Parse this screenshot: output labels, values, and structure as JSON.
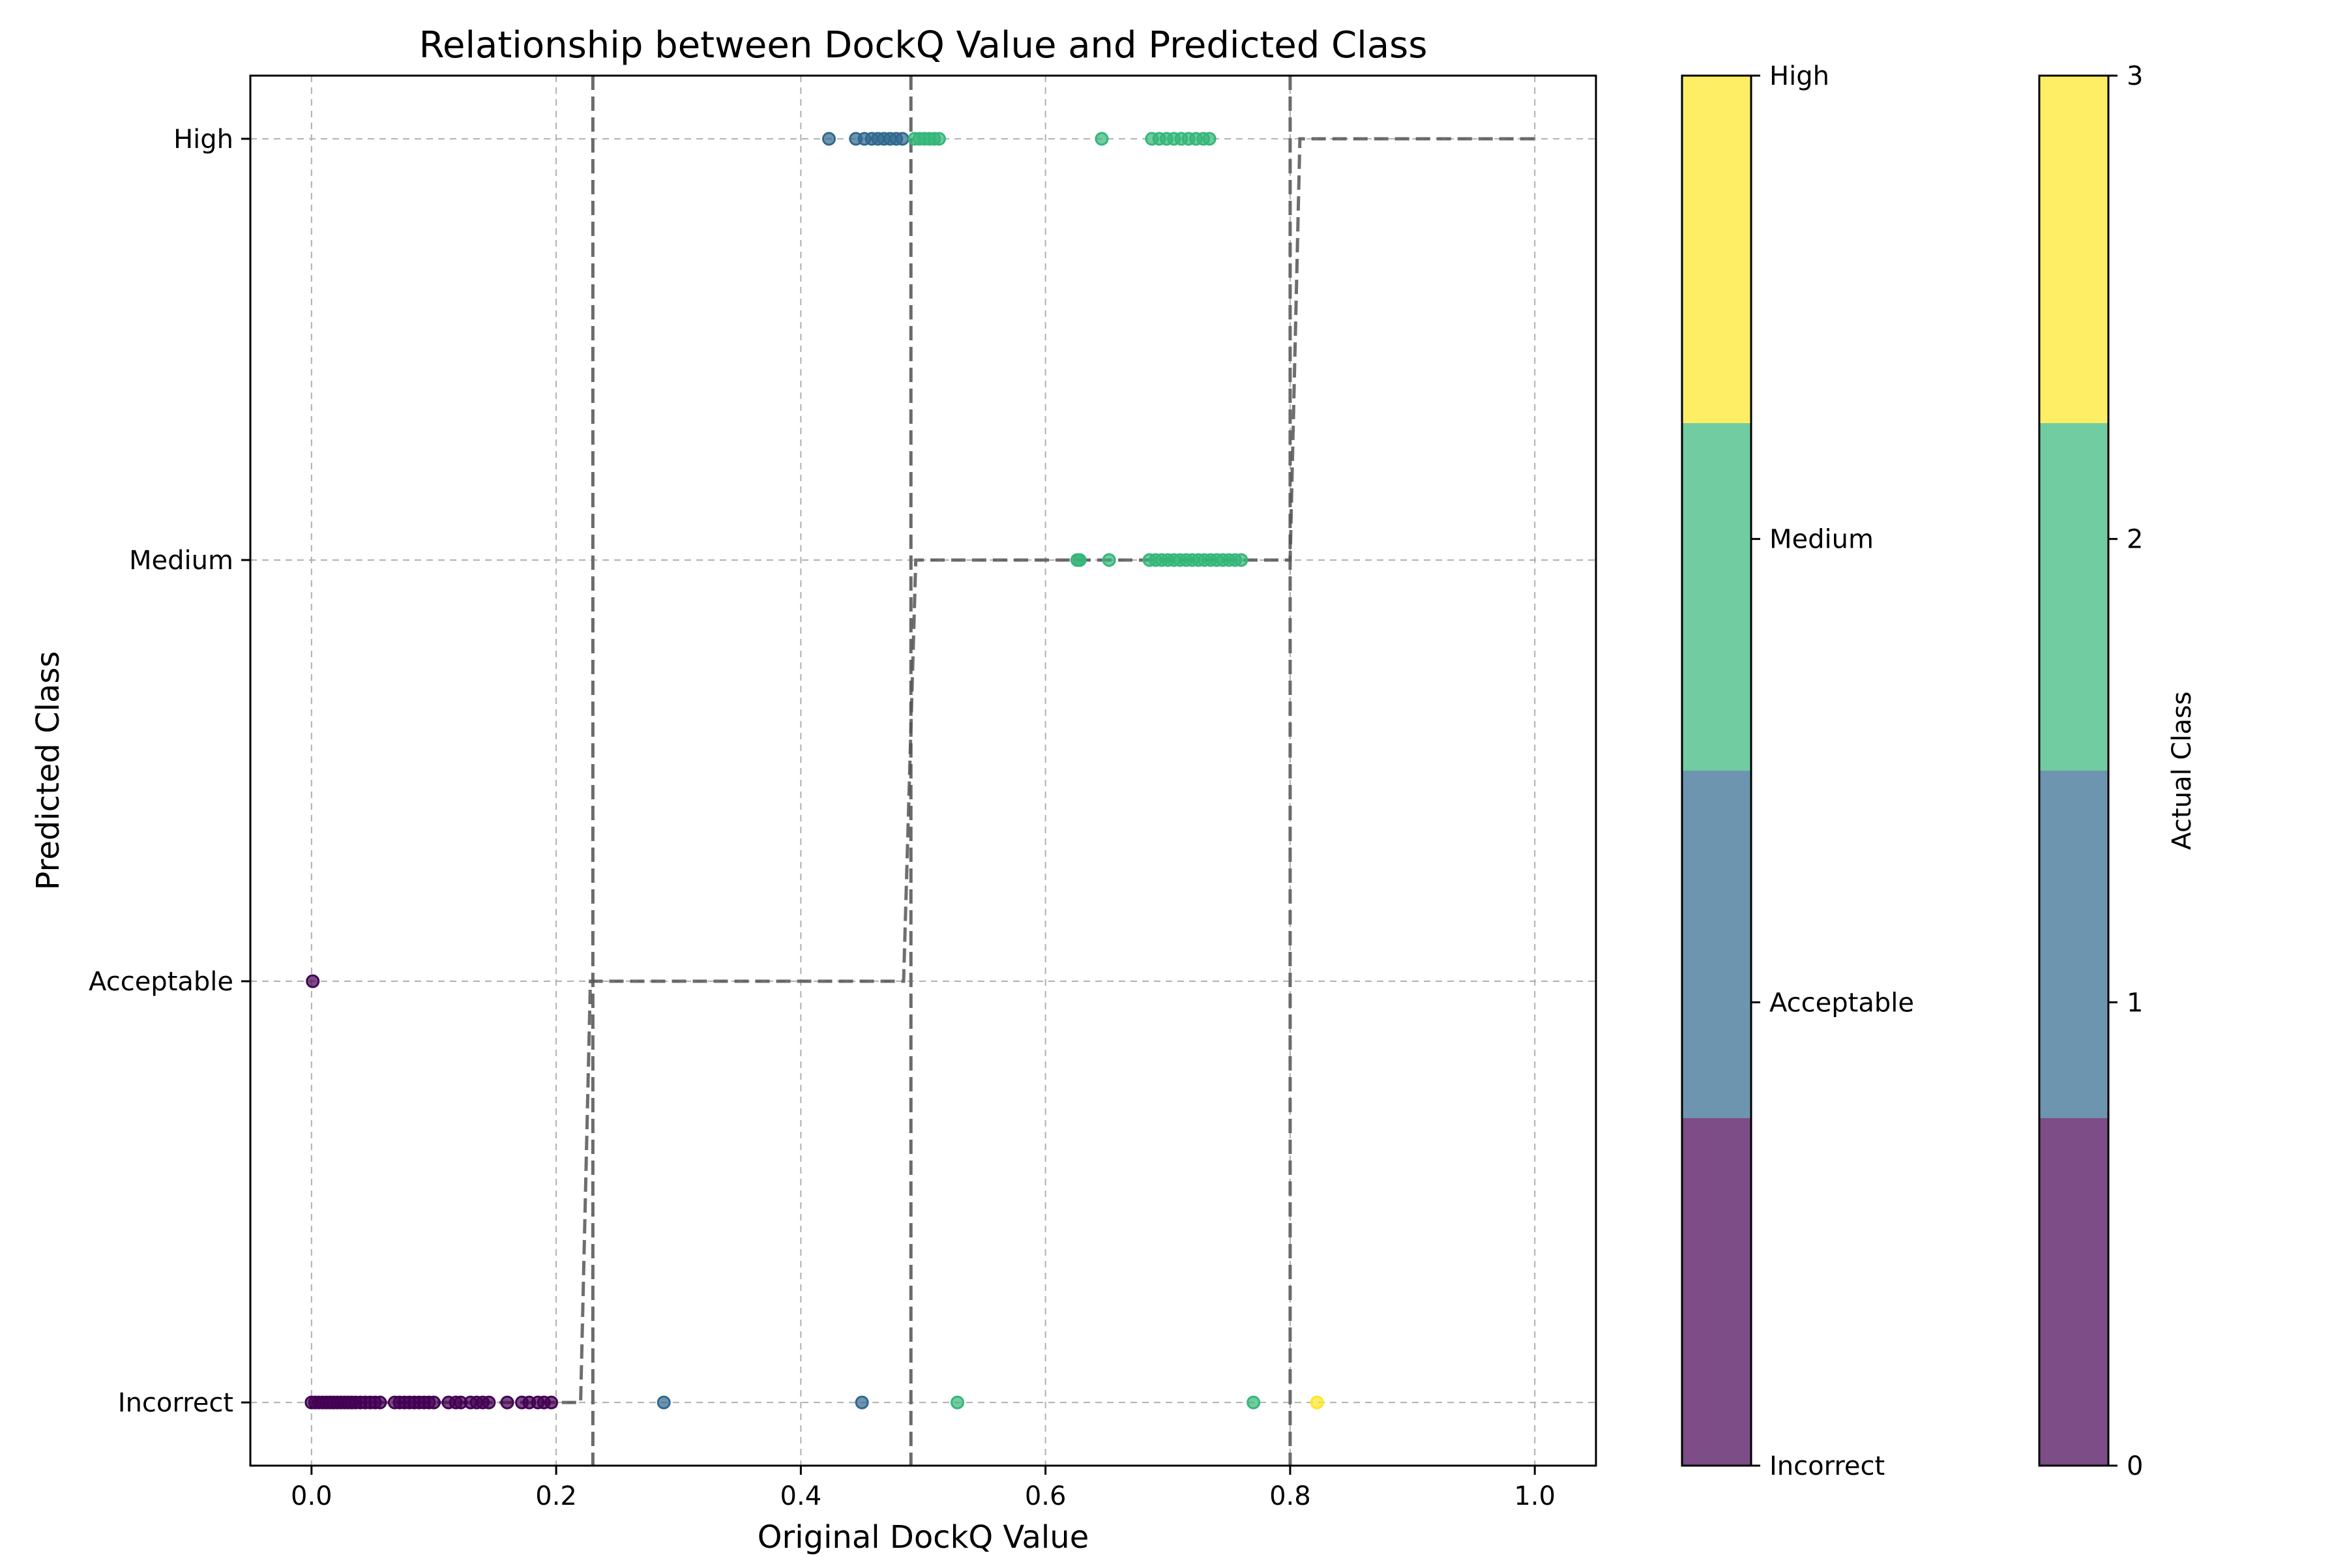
{
  "chart_data": {
    "type": "scatter",
    "title": "Relationship between DockQ Value and Predicted Class",
    "xlabel": "Original DockQ Value",
    "ylabel": "Predicted Class",
    "xlim": [
      -0.05,
      1.05
    ],
    "ylim": [
      -0.15,
      3.15
    ],
    "xticks": [
      {
        "value": 0.0,
        "label": "0.0"
      },
      {
        "value": 0.2,
        "label": "0.2"
      },
      {
        "value": 0.4,
        "label": "0.4"
      },
      {
        "value": 0.6,
        "label": "0.6"
      },
      {
        "value": 0.8,
        "label": "0.8"
      },
      {
        "value": 1.0,
        "label": "1.0"
      }
    ],
    "yticks": [
      {
        "value": 0,
        "label": "Incorrect"
      },
      {
        "value": 1,
        "label": "Acceptable"
      },
      {
        "value": 2,
        "label": "Medium"
      },
      {
        "value": 3,
        "label": "High"
      }
    ],
    "grid": true,
    "thresholds": [
      0.23,
      0.49,
      0.8
    ],
    "step_line": [
      [
        0.0,
        0
      ],
      [
        0.22,
        0
      ],
      [
        0.228,
        1
      ],
      [
        0.484,
        1
      ],
      [
        0.494,
        2
      ],
      [
        0.8,
        2
      ],
      [
        0.808,
        3
      ],
      [
        1.0,
        3
      ]
    ],
    "class_colors": [
      "#440154",
      "#31688e",
      "#35b779",
      "#fde725"
    ],
    "point_groups": [
      {
        "predicted": 0,
        "actual": 0,
        "x": [
          0.0,
          0.003,
          0.006,
          0.009,
          0.012,
          0.015,
          0.018,
          0.021,
          0.024,
          0.027,
          0.03,
          0.033,
          0.036,
          0.04,
          0.044,
          0.048,
          0.052,
          0.056,
          0.068,
          0.072,
          0.076,
          0.08,
          0.084,
          0.088,
          0.092,
          0.096,
          0.1,
          0.112,
          0.118,
          0.122,
          0.13,
          0.135,
          0.14,
          0.145,
          0.16,
          0.172,
          0.178,
          0.185,
          0.19,
          0.196
        ]
      },
      {
        "predicted": 0,
        "actual": 1,
        "x": [
          0.288,
          0.45
        ]
      },
      {
        "predicted": 0,
        "actual": 2,
        "x": [
          0.528,
          0.77
        ]
      },
      {
        "predicted": 0,
        "actual": 3,
        "x": [
          0.822
        ]
      },
      {
        "predicted": 1,
        "actual": 0,
        "x": [
          0.001
        ]
      },
      {
        "predicted": 2,
        "actual": 2,
        "x": [
          0.626,
          0.628,
          0.652,
          0.685,
          0.69,
          0.695,
          0.7,
          0.705,
          0.71,
          0.715,
          0.72,
          0.725,
          0.73,
          0.735,
          0.74,
          0.745,
          0.75,
          0.755,
          0.76
        ]
      },
      {
        "predicted": 3,
        "actual": 1,
        "x": [
          0.423,
          0.445,
          0.452,
          0.458,
          0.463,
          0.468,
          0.473,
          0.478,
          0.483
        ]
      },
      {
        "predicted": 3,
        "actual": 2,
        "x": [
          0.493,
          0.497,
          0.501,
          0.505,
          0.509,
          0.513,
          0.646,
          0.687,
          0.693,
          0.699,
          0.705,
          0.711,
          0.717,
          0.723,
          0.729,
          0.734
        ]
      }
    ],
    "colorbars": [
      {
        "label": "",
        "ticks": [
          {
            "value": 0,
            "label": "Incorrect"
          },
          {
            "value": 1,
            "label": "Acceptable"
          },
          {
            "value": 2,
            "label": "Medium"
          },
          {
            "value": 3,
            "label": "High"
          }
        ]
      },
      {
        "label": "Actual Class",
        "ticks": [
          {
            "value": 0,
            "label": "0"
          },
          {
            "value": 1,
            "label": "1"
          },
          {
            "value": 2,
            "label": "2"
          },
          {
            "value": 3,
            "label": "3"
          }
        ]
      }
    ]
  }
}
